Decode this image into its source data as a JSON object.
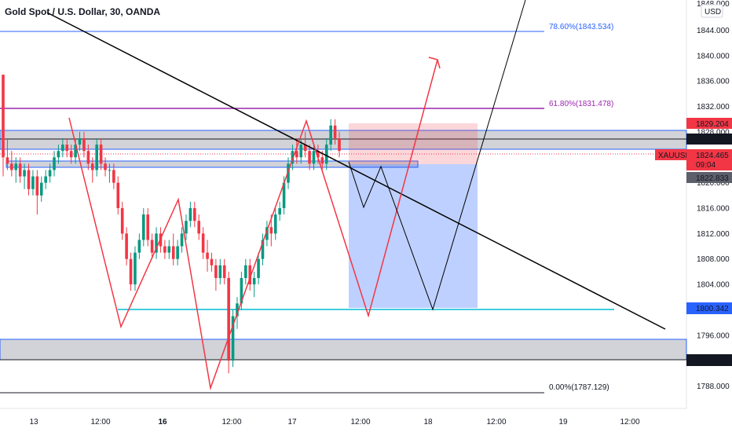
{
  "header": {
    "symbol_title": "Gold Spot / U.S. Dollar, 30, OANDA"
  },
  "price_scale": {
    "currency": "USD",
    "top_label": "1848.000",
    "ticks": [
      "1844.000",
      "1840.000",
      "1836.000",
      "1832.000",
      "1828.000",
      "1824.000",
      "1820.000",
      "1816.000",
      "1812.000",
      "1808.000",
      "1804.000",
      "1800.000",
      "1796.000",
      "1792.000",
      "1788.000"
    ]
  },
  "time_axis": {
    "ticks": [
      {
        "label": "13",
        "bold": false
      },
      {
        "label": "12:00",
        "bold": false
      },
      {
        "label": "16",
        "bold": true
      },
      {
        "label": "12:00",
        "bold": false
      },
      {
        "label": "17",
        "bold": false
      },
      {
        "label": "12:00",
        "bold": false
      },
      {
        "label": "18",
        "bold": false
      },
      {
        "label": "12:00",
        "bold": false
      },
      {
        "label": "19",
        "bold": false
      },
      {
        "label": "12:00",
        "bold": false
      }
    ]
  },
  "price_labels": [
    {
      "id": "pl-stop",
      "text": "1829.204",
      "color": "#f23645"
    },
    {
      "id": "pl-level",
      "text": "1826.757",
      "color": "#131722"
    },
    {
      "id": "pl-symbol",
      "text": "XAUUSD",
      "color": "#f23645"
    },
    {
      "id": "pl-last",
      "text": "1824.465",
      "color": "#f23645"
    },
    {
      "id": "pl-timer",
      "text": "09:04",
      "color": "#f23645"
    },
    {
      "id": "pl-entry",
      "text": "1822.833",
      "color": "#5d606b"
    },
    {
      "id": "pl-target",
      "text": "1800.342",
      "color": "#2962ff"
    },
    {
      "id": "pl-support",
      "text": "1792.111",
      "color": "#131722"
    }
  ],
  "fibonacci": [
    {
      "text": "78.60%(1843.534)",
      "color": "#2962ff"
    },
    {
      "text": "61.80%(1831.478)",
      "color": "#9c27b0"
    },
    {
      "text": "0.00%(1787.129)",
      "color": "#131722"
    }
  ],
  "colors": {
    "up": "#089981",
    "down": "#f23645",
    "zigzag": "#f23645",
    "trendline": "#000000",
    "support": "#00bcd4",
    "zone": "#b2b5be"
  },
  "chart_data": {
    "type": "candlestick",
    "symbol": "XAUUSD",
    "interval": "30",
    "y_range": [
      1786,
      1849
    ],
    "current_price": 1824.465,
    "levels": {
      "fib_78_6": 1843.534,
      "fib_61_8": 1831.478,
      "fib_0": 1787.129,
      "stop_loss": 1829.204,
      "entry": 1822.833,
      "take_profit": 1800.342,
      "resistance": 1826.757,
      "support": 1792.111
    },
    "candles": [
      [
        1837,
        1837,
        1821,
        1824
      ],
      [
        1824,
        1827,
        1822,
        1823
      ],
      [
        1823,
        1825,
        1821,
        1822
      ],
      [
        1822,
        1824,
        1820,
        1823
      ],
      [
        1823,
        1824,
        1820,
        1821
      ],
      [
        1821,
        1823,
        1819,
        1822
      ],
      [
        1822,
        1823,
        1818,
        1819
      ],
      [
        1819,
        1822,
        1818,
        1821
      ],
      [
        1821,
        1822,
        1815,
        1818
      ],
      [
        1818,
        1821,
        1817,
        1820
      ],
      [
        1820,
        1822,
        1819,
        1821
      ],
      [
        1821,
        1823,
        1820,
        1822
      ],
      [
        1822,
        1825,
        1821,
        1824
      ],
      [
        1824,
        1826,
        1823,
        1825
      ],
      [
        1825,
        1827,
        1824,
        1826
      ],
      [
        1826,
        1827,
        1824,
        1825
      ],
      [
        1825,
        1826,
        1823,
        1824
      ],
      [
        1824,
        1827,
        1823,
        1826
      ],
      [
        1826,
        1828,
        1825,
        1827
      ],
      [
        1827,
        1828,
        1824,
        1825
      ],
      [
        1825,
        1826,
        1822,
        1823
      ],
      [
        1823,
        1824,
        1820,
        1822
      ],
      [
        1822,
        1827,
        1821,
        1826
      ],
      [
        1826,
        1827,
        1822,
        1823
      ],
      [
        1823,
        1824,
        1821,
        1822
      ],
      [
        1822,
        1823,
        1820,
        1822
      ],
      [
        1822,
        1823,
        1819,
        1820
      ],
      [
        1820,
        1821,
        1815,
        1816
      ],
      [
        1816,
        1817,
        1811,
        1812
      ],
      [
        1812,
        1813,
        1807,
        1808
      ],
      [
        1808,
        1809,
        1803,
        1804
      ],
      [
        1804,
        1810,
        1803,
        1809
      ],
      [
        1809,
        1812,
        1808,
        1811
      ],
      [
        1811,
        1816,
        1810,
        1815
      ],
      [
        1815,
        1816,
        1810,
        1811
      ],
      [
        1811,
        1812,
        1808,
        1809
      ],
      [
        1809,
        1813,
        1808,
        1812
      ],
      [
        1812,
        1813,
        1809,
        1810
      ],
      [
        1810,
        1811,
        1808,
        1809
      ],
      [
        1809,
        1811,
        1808,
        1810
      ],
      [
        1810,
        1812,
        1807,
        1808
      ],
      [
        1808,
        1811,
        1807,
        1810
      ],
      [
        1810,
        1813,
        1809,
        1812
      ],
      [
        1812,
        1815,
        1811,
        1814
      ],
      [
        1814,
        1817,
        1813,
        1816
      ],
      [
        1816,
        1817,
        1813,
        1814
      ],
      [
        1814,
        1815,
        1811,
        1812
      ],
      [
        1812,
        1813,
        1808,
        1809
      ],
      [
        1809,
        1811,
        1806,
        1808
      ],
      [
        1808,
        1809,
        1806,
        1807
      ],
      [
        1807,
        1808,
        1803,
        1805
      ],
      [
        1805,
        1808,
        1804,
        1807
      ],
      [
        1807,
        1808,
        1804,
        1805
      ],
      [
        1805,
        1806,
        1790,
        1792
      ],
      [
        1792,
        1800,
        1791,
        1799
      ],
      [
        1799,
        1802,
        1797,
        1801
      ],
      [
        1801,
        1806,
        1800,
        1805
      ],
      [
        1805,
        1808,
        1804,
        1807
      ],
      [
        1807,
        1808,
        1803,
        1804
      ],
      [
        1804,
        1806,
        1802,
        1805
      ],
      [
        1805,
        1809,
        1804,
        1808
      ],
      [
        1808,
        1812,
        1807,
        1811
      ],
      [
        1811,
        1814,
        1810,
        1813
      ],
      [
        1813,
        1815,
        1810,
        1812
      ],
      [
        1812,
        1816,
        1811,
        1815
      ],
      [
        1815,
        1817,
        1814,
        1816
      ],
      [
        1816,
        1821,
        1815,
        1820
      ],
      [
        1820,
        1824,
        1819,
        1823
      ],
      [
        1823,
        1826,
        1822,
        1825
      ],
      [
        1825,
        1827,
        1823,
        1824
      ],
      [
        1824,
        1827,
        1823,
        1826
      ],
      [
        1826,
        1828,
        1824,
        1825
      ],
      [
        1825,
        1826,
        1822,
        1823
      ],
      [
        1823,
        1826,
        1822,
        1825
      ],
      [
        1825,
        1826,
        1823,
        1824
      ],
      [
        1824,
        1825,
        1822,
        1823
      ],
      [
        1823,
        1827,
        1822,
        1826
      ],
      [
        1826,
        1830,
        1825,
        1829
      ],
      [
        1829,
        1830,
        1826,
        1827
      ],
      [
        1827,
        1828,
        1824,
        1825
      ]
    ]
  }
}
